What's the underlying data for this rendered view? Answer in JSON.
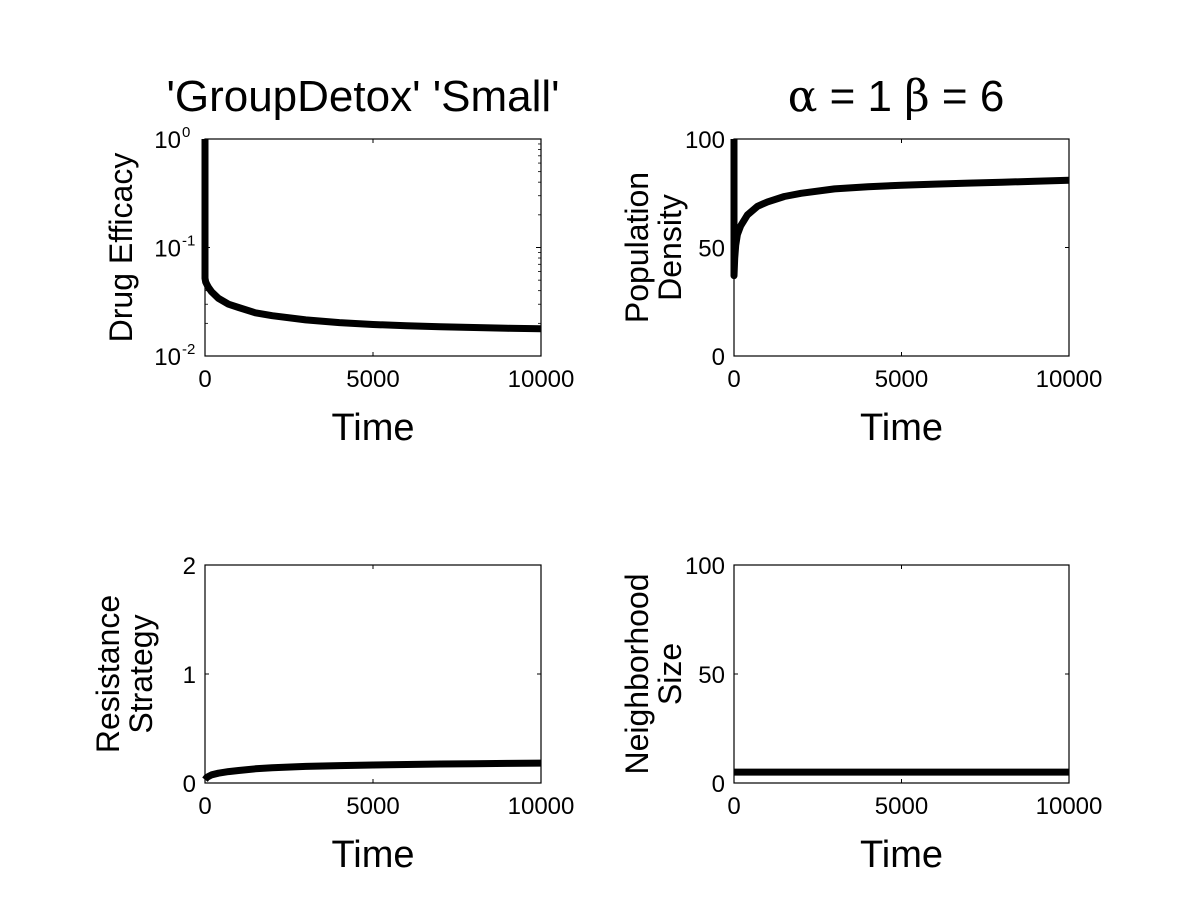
{
  "figure": {
    "title_left": "'GroupDetox' 'Small'",
    "title_right": {
      "alpha_symbol": "α",
      "alpha_text": " = 1 ",
      "beta_symbol": "β",
      "beta_text": " = 6"
    }
  },
  "chart_data": [
    {
      "type": "line",
      "xlabel": "Time",
      "ylabel": [
        "Drug Efficacy"
      ],
      "xlim": [
        0,
        10000
      ],
      "ylim": [
        0.01,
        1
      ],
      "yscale": "log",
      "xticks": [
        "0",
        "5000",
        "10000"
      ],
      "yticks": [
        {
          "base": "10",
          "exp": "-2",
          "value": 0.01
        },
        {
          "base": "10",
          "exp": "-1",
          "value": 0.1
        },
        {
          "base": "10",
          "exp": "0",
          "value": 1
        }
      ],
      "series": [
        {
          "x": [
            0,
            0,
            20,
            50,
            100,
            200,
            400,
            700,
            1000,
            1500,
            2000,
            3000,
            4000,
            5000,
            6000,
            7000,
            8000,
            9000,
            10000
          ],
          "y": [
            1,
            0.052,
            0.048,
            0.046,
            0.043,
            0.039,
            0.034,
            0.03,
            0.028,
            0.025,
            0.0235,
            0.0215,
            0.0203,
            0.0195,
            0.019,
            0.0186,
            0.0183,
            0.018,
            0.0178
          ]
        }
      ]
    },
    {
      "type": "line",
      "xlabel": "Time",
      "ylabel": [
        "Population",
        "Density"
      ],
      "xlim": [
        0,
        10000
      ],
      "ylim": [
        0,
        100
      ],
      "yscale": "linear",
      "xticks": [
        "0",
        "5000",
        "10000"
      ],
      "yticks": [
        "0",
        "50",
        "100"
      ],
      "series": [
        {
          "x": [
            0,
            0,
            20,
            50,
            100,
            200,
            400,
            700,
            1000,
            1500,
            2000,
            3000,
            4000,
            5000,
            6000,
            7000,
            8000,
            9000,
            10000
          ],
          "y": [
            100,
            37,
            45,
            51,
            56,
            60,
            65,
            69,
            71,
            73.5,
            75,
            77,
            78,
            78.7,
            79.2,
            79.7,
            80.1,
            80.5,
            81
          ]
        }
      ]
    },
    {
      "type": "line",
      "xlabel": "Time",
      "ylabel": [
        "Resistance",
        "Strategy"
      ],
      "xlim": [
        0,
        10000
      ],
      "ylim": [
        0,
        2
      ],
      "yscale": "linear",
      "xticks": [
        "0",
        "5000",
        "10000"
      ],
      "yticks": [
        "0",
        "1",
        "2"
      ],
      "series": [
        {
          "x": [
            0,
            50,
            100,
            200,
            400,
            700,
            1000,
            1500,
            2000,
            3000,
            4000,
            5000,
            6000,
            7000,
            8000,
            9000,
            10000
          ],
          "y": [
            0.03,
            0.05,
            0.06,
            0.075,
            0.09,
            0.105,
            0.115,
            0.13,
            0.14,
            0.152,
            0.16,
            0.165,
            0.17,
            0.174,
            0.177,
            0.18,
            0.183
          ]
        }
      ]
    },
    {
      "type": "line",
      "xlabel": "Time",
      "ylabel": [
        "Neighborhood",
        "Size"
      ],
      "xlim": [
        0,
        10000
      ],
      "ylim": [
        0,
        100
      ],
      "yscale": "linear",
      "xticks": [
        "0",
        "5000",
        "10000"
      ],
      "yticks": [
        "0",
        "50",
        "100"
      ],
      "series": [
        {
          "x": [
            0,
            10000
          ],
          "y": [
            5,
            5
          ]
        }
      ]
    }
  ]
}
